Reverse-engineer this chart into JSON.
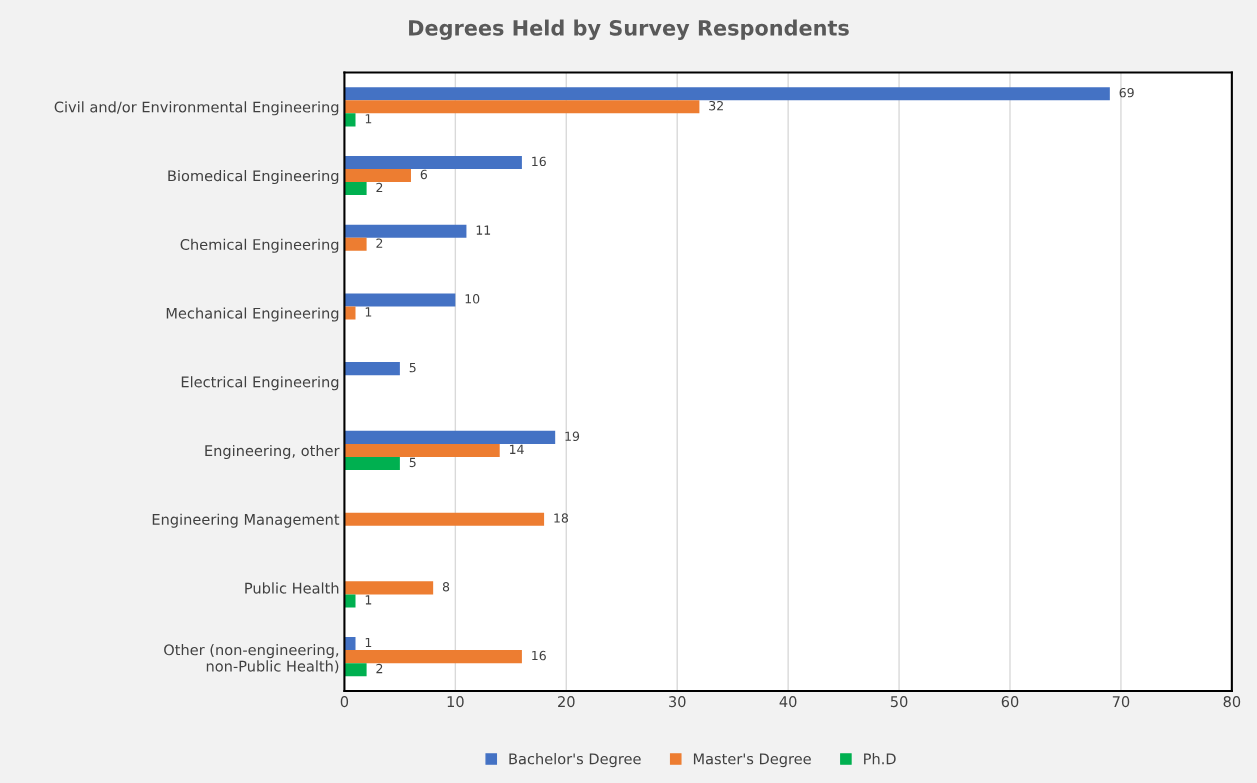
{
  "chart_data": {
    "type": "bar",
    "orientation": "horizontal",
    "title": "Degrees Held by Survey Respondents",
    "categories": [
      "Civil and/or Environmental Engineering",
      "Biomedical Engineering",
      "Chemical Engineering",
      "Mechanical Engineering",
      "Electrical Engineering",
      "Engineering, other",
      "Engineering Management",
      "Public Health",
      "Other (non-engineering,\nnon-Public Health)"
    ],
    "series": [
      {
        "name": "Bachelor's Degree",
        "color": "#4472c4",
        "values": [
          69,
          16,
          11,
          10,
          5,
          19,
          null,
          null,
          1
        ]
      },
      {
        "name": "Master's Degree",
        "color": "#ed7d31",
        "values": [
          32,
          6,
          2,
          1,
          null,
          14,
          18,
          8,
          16
        ]
      },
      {
        "name": "Ph.D",
        "color": "#00b050",
        "values": [
          1,
          2,
          null,
          null,
          null,
          5,
          null,
          1,
          2
        ]
      }
    ],
    "xlim": [
      0,
      80
    ],
    "xticks": [
      0,
      10,
      20,
      30,
      40,
      50,
      60,
      70,
      80
    ],
    "grid": "x",
    "legend": "bottom",
    "data_labels": true
  }
}
